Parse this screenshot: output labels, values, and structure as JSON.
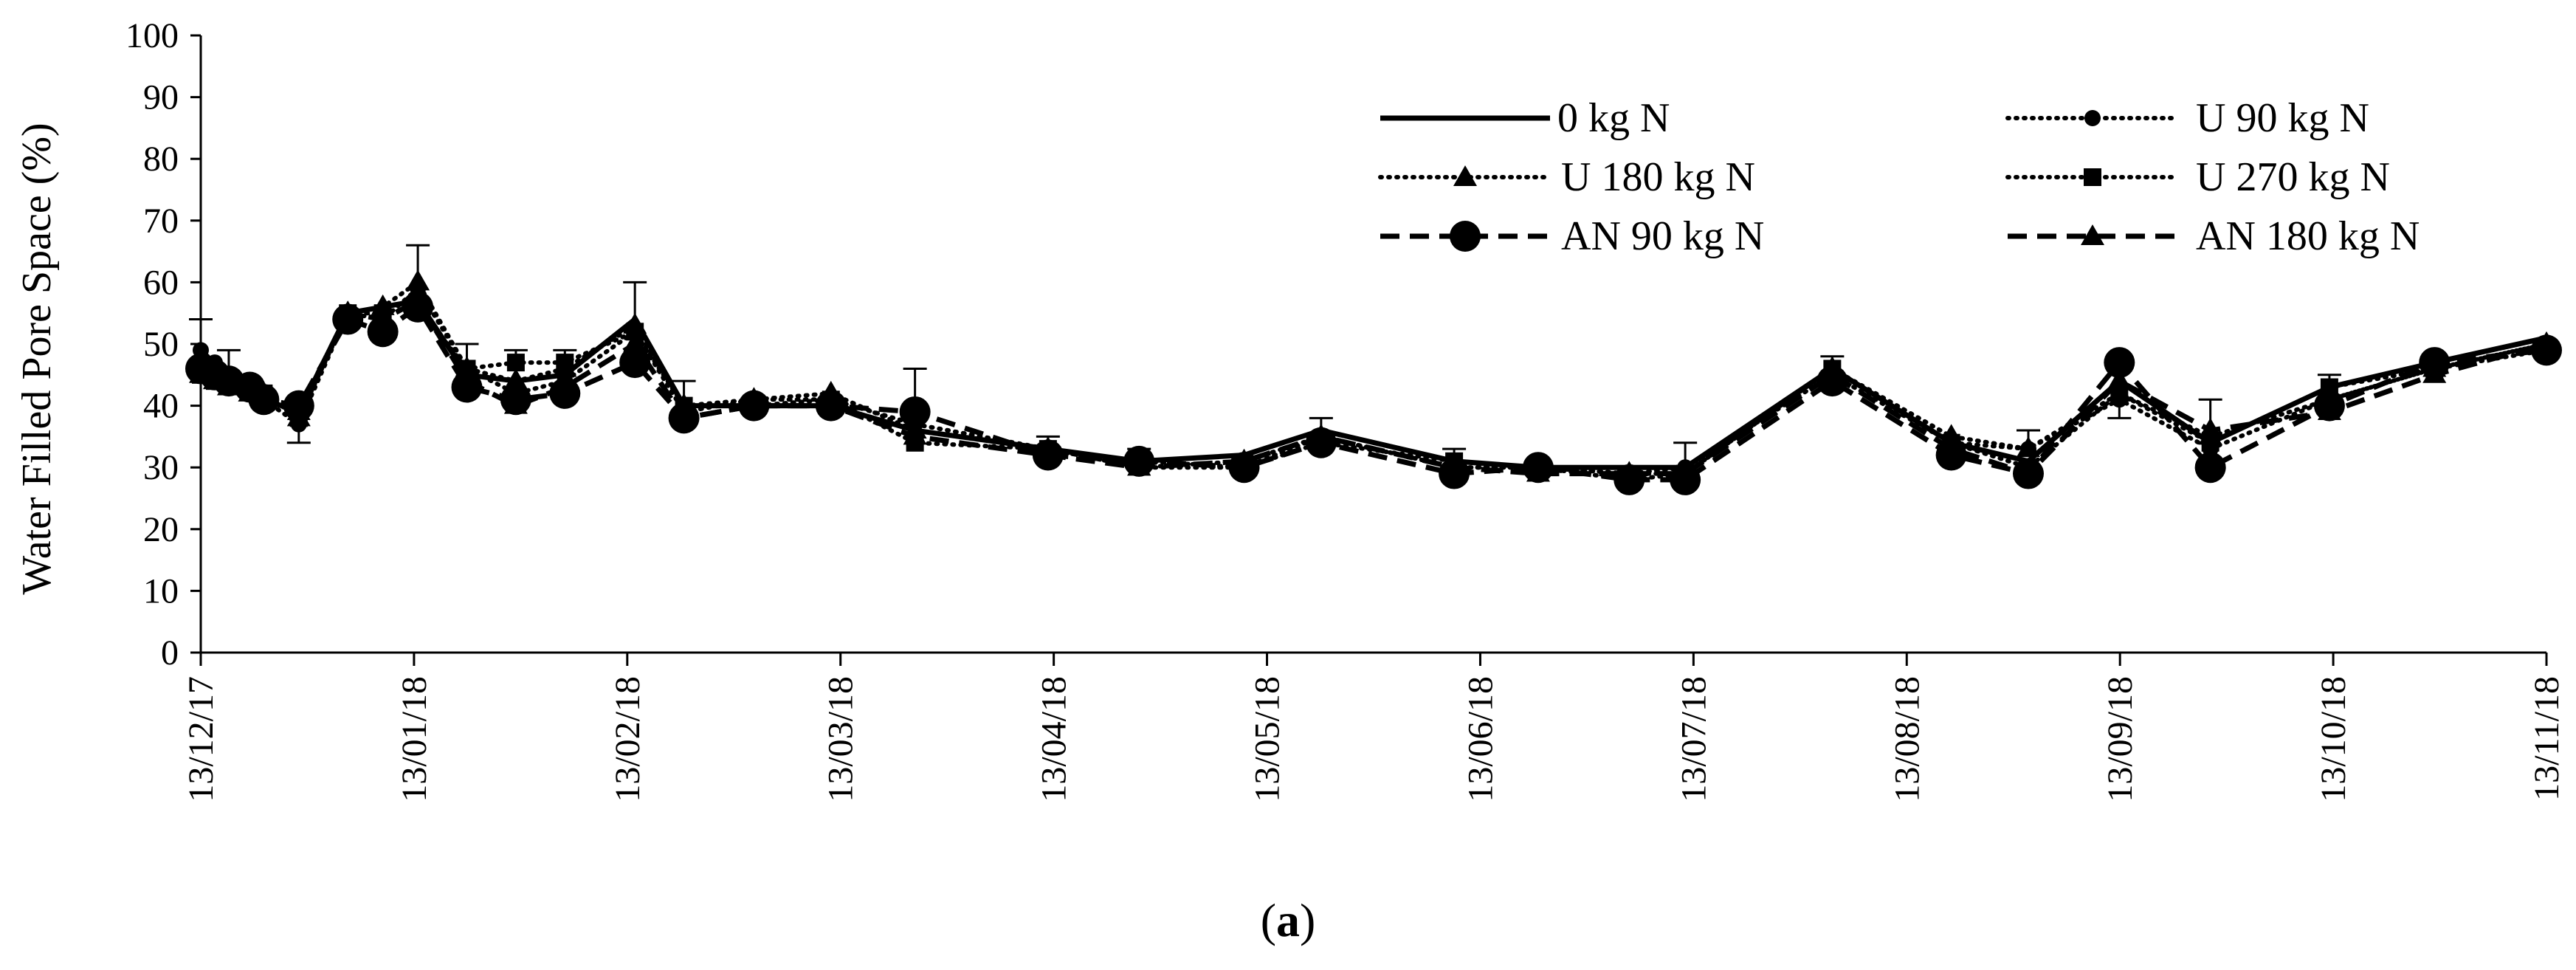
{
  "chart_data": {
    "type": "line",
    "title": "",
    "caption": "(a)",
    "caption_bold": "a",
    "xlabel": "",
    "ylabel": "Water Filled Pore Space (%)",
    "ylim": [
      0,
      100
    ],
    "y_ticks": [
      0,
      10,
      20,
      30,
      40,
      50,
      60,
      70,
      80,
      90,
      100
    ],
    "x_start": "2017-12-13",
    "x_end": "2018-11-13",
    "x_ticks": [
      "13/12/17",
      "13/01/18",
      "13/02/18",
      "13/03/18",
      "13/04/18",
      "13/05/18",
      "13/06/18",
      "13/07/18",
      "13/08/18",
      "13/09/18",
      "13/10/18",
      "13/11/18"
    ],
    "grid": false,
    "legend_position": "top-right",
    "dates": [
      "2017-12-13",
      "2017-12-15",
      "2017-12-17",
      "2017-12-20",
      "2017-12-22",
      "2017-12-27",
      "2018-01-03",
      "2018-01-08",
      "2018-01-13",
      "2018-01-20",
      "2018-01-27",
      "2018-02-03",
      "2018-02-13",
      "2018-02-20",
      "2018-03-02",
      "2018-03-13",
      "2018-03-25",
      "2018-04-13",
      "2018-04-26",
      "2018-05-11",
      "2018-05-22",
      "2018-06-10",
      "2018-06-22",
      "2018-07-05",
      "2018-07-13",
      "2018-08-03",
      "2018-08-20",
      "2018-08-31",
      "2018-09-13",
      "2018-09-26",
      "2018-10-13",
      "2018-10-28",
      "2018-11-13"
    ],
    "series": [
      {
        "name": "0 kg N",
        "line": "solid",
        "marker": "none",
        "values": [
          47,
          46,
          44,
          42,
          41,
          39,
          55,
          56,
          57,
          45,
          44,
          45,
          54,
          40,
          40,
          40,
          36,
          33,
          31,
          32,
          36,
          31,
          30,
          30,
          30,
          46,
          34,
          31,
          44,
          34,
          43,
          47,
          51
        ]
      },
      {
        "name": "U 90 kg N",
        "line": "dotted",
        "marker": "small-circle",
        "values": [
          49,
          47,
          45,
          43,
          41,
          37,
          55,
          54,
          59,
          46,
          42,
          44,
          52,
          39,
          41,
          41,
          37,
          33,
          30,
          30,
          35,
          30,
          30,
          29,
          30,
          45,
          34,
          33,
          41,
          33,
          41,
          46,
          50
        ]
      },
      {
        "name": "U 180 kg N",
        "line": "dotted",
        "marker": "triangle",
        "values": [
          46,
          45,
          44,
          43,
          42,
          38,
          55,
          56,
          60,
          46,
          44,
          46,
          53,
          40,
          41,
          42,
          36,
          33,
          30,
          31,
          35,
          30,
          30,
          29,
          29,
          46,
          35,
          33,
          42,
          35,
          41,
          46,
          50
        ]
      },
      {
        "name": "U 270 kg N",
        "line": "dotted",
        "marker": "square",
        "values": [
          45,
          44,
          44,
          43,
          42,
          38,
          55,
          55,
          56,
          46,
          47,
          47,
          52,
          40,
          40,
          41,
          34,
          33,
          31,
          30,
          34,
          31,
          30,
          28,
          29,
          46,
          34,
          30,
          42,
          34,
          43,
          46,
          49
        ]
      },
      {
        "name": "AN 90 kg N",
        "line": "dashed",
        "marker": "large-circle",
        "values": [
          46,
          45,
          44,
          43,
          41,
          40,
          54,
          52,
          56,
          43,
          41,
          42,
          47,
          38,
          40,
          40,
          39,
          32,
          31,
          30,
          34,
          29,
          30,
          28,
          28,
          44,
          32,
          29,
          47,
          30,
          40,
          47,
          49
        ]
      },
      {
        "name": "AN 180 kg N",
        "line": "dashed",
        "marker": "triangle",
        "values": [
          45,
          44,
          43,
          42,
          41,
          39,
          55,
          54,
          57,
          44,
          40,
          43,
          50,
          38,
          40,
          40,
          35,
          32,
          30,
          31,
          35,
          30,
          29,
          29,
          29,
          45,
          33,
          29,
          44,
          36,
          39,
          45,
          50
        ]
      }
    ],
    "error_bars": [
      {
        "date_index": 0,
        "upper": 54
      },
      {
        "date_index": 2,
        "upper": 49
      },
      {
        "date_index": 5,
        "lower": 34
      },
      {
        "date_index": 8,
        "upper": 66
      },
      {
        "date_index": 9,
        "upper": 50
      },
      {
        "date_index": 10,
        "upper": 49
      },
      {
        "date_index": 11,
        "upper": 49
      },
      {
        "date_index": 12,
        "upper": 60
      },
      {
        "date_index": 13,
        "upper": 44
      },
      {
        "date_index": 16,
        "upper": 46
      },
      {
        "date_index": 17,
        "upper": 35
      },
      {
        "date_index": 18,
        "upper": 33
      },
      {
        "date_index": 20,
        "upper": 38
      },
      {
        "date_index": 21,
        "upper": 33
      },
      {
        "date_index": 24,
        "upper": 34
      },
      {
        "date_index": 25,
        "upper": 48
      },
      {
        "date_index": 27,
        "upper": 36
      },
      {
        "date_index": 28,
        "lower": 38
      },
      {
        "date_index": 29,
        "upper": 41
      },
      {
        "date_index": 30,
        "upper": 45
      }
    ]
  }
}
